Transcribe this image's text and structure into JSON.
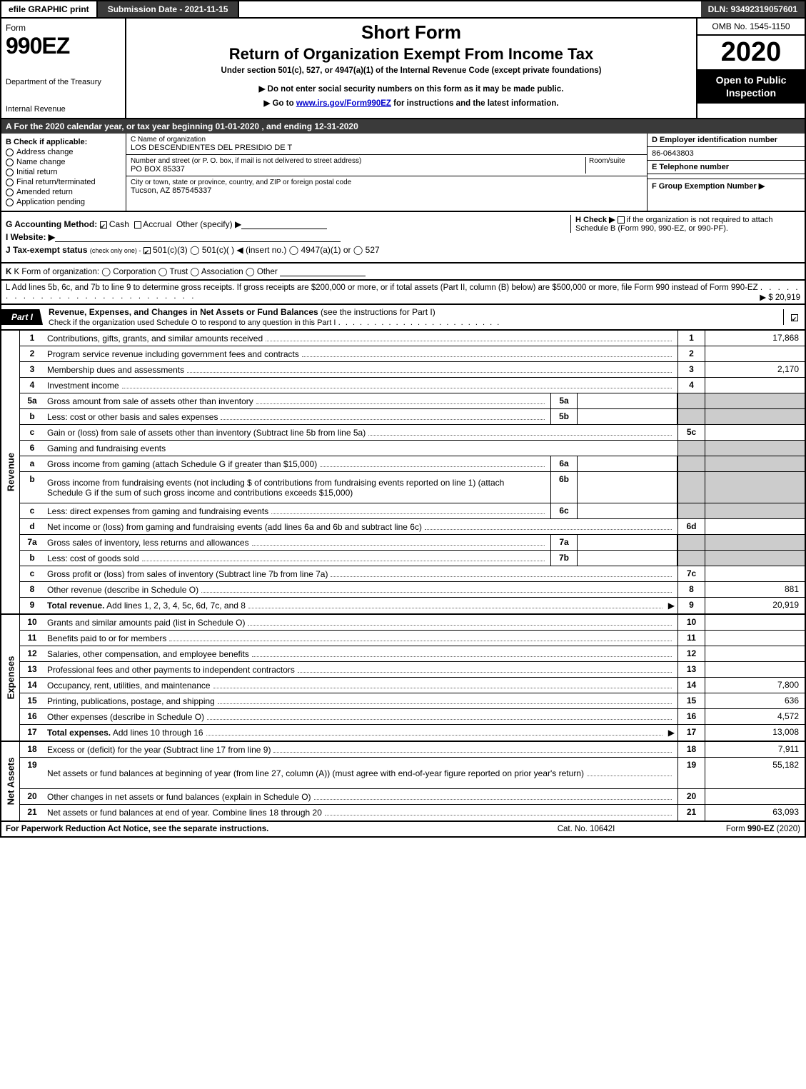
{
  "topbar": {
    "efile": "efile GRAPHIC print",
    "subdate": "Submission Date - 2021-11-15",
    "dln": "DLN: 93492319057601"
  },
  "header": {
    "form_word": "Form",
    "form_num": "990EZ",
    "short_form": "Short Form",
    "return_title": "Return of Organization Exempt From Income Tax",
    "under_section": "Under section 501(c), 527, or 4947(a)(1) of the Internal Revenue Code (except private foundations)",
    "note": "▶ Do not enter social security numbers on this form as it may be made public.",
    "goto_pre": "▶ Go to ",
    "goto_link": "www.irs.gov/Form990EZ",
    "goto_post": " for instructions and the latest information.",
    "dept1": "Department of the Treasury",
    "dept2": "Internal Revenue",
    "omb": "OMB No. 1545-1150",
    "year": "2020",
    "open": "Open to Public Inspection"
  },
  "section_a": "A   For the 2020 calendar year, or tax year beginning 01-01-2020 , and ending 12-31-2020",
  "col_b": {
    "label": "B  Check if applicable:",
    "items": [
      "Address change",
      "Name change",
      "Initial return",
      "Final return/terminated",
      "Amended return",
      "Application pending"
    ]
  },
  "col_c": {
    "name_lbl": "C Name of organization",
    "name_val": "LOS DESCENDIENTES DEL PRESIDIO DE T",
    "street_lbl": "Number and street (or P. O. box, if mail is not delivered to street address)",
    "room_lbl": "Room/suite",
    "street_val": "PO BOX 85337",
    "city_lbl": "City or town, state or province, country, and ZIP or foreign postal code",
    "city_val": "Tucson, AZ  857545337"
  },
  "col_d": {
    "ein_lbl": "D Employer identification number",
    "ein_val": "86-0643803",
    "tel_lbl": "E Telephone number",
    "tel_val": "",
    "grp_lbl": "F Group Exemption Number   ▶",
    "grp_val": ""
  },
  "g_row": {
    "label": "G Accounting Method:",
    "cash": "Cash",
    "accrual": "Accrual",
    "other": "Other (specify) ▶"
  },
  "h_box": {
    "label": "H  Check ▶",
    "text": "if the organization is not required to attach Schedule B (Form 990, 990-EZ, or 990-PF)."
  },
  "i_row": "I Website: ▶",
  "j_row": {
    "label": "J Tax-exempt status",
    "sub": "(check only one) -",
    "opts": "501(c)(3)   ◯ 501(c)(  ) ◀ (insert no.)  ◯ 4947(a)(1) or  ◯ 527"
  },
  "k_row": "K Form of organization:   ◯ Corporation   ◯ Trust   ◯ Association   ◯ Other",
  "l_row": {
    "text": "L Add lines 5b, 6c, and 7b to line 9 to determine gross receipts. If gross receipts are $200,000 or more, or if total assets (Part II, column (B) below) are $500,000 or more, file Form 990 instead of Form 990-EZ",
    "arrow": "▶ $ 20,919"
  },
  "part1": {
    "tag": "Part I",
    "title": "Revenue, Expenses, and Changes in Net Assets or Fund Balances",
    "sub": "(see the instructions for Part I)",
    "checknote": "Check if the organization used Schedule O to respond to any question in this Part I"
  },
  "sections": {
    "revenue": "Revenue",
    "expenses": "Expenses",
    "netassets": "Net Assets"
  },
  "rows": [
    {
      "n": "1",
      "desc": "Contributions, gifts, grants, and similar amounts received",
      "ref": "1",
      "val": "17,868"
    },
    {
      "n": "2",
      "desc": "Program service revenue including government fees and contracts",
      "ref": "2",
      "val": ""
    },
    {
      "n": "3",
      "desc": "Membership dues and assessments",
      "ref": "3",
      "val": "2,170"
    },
    {
      "n": "4",
      "desc": "Investment income",
      "ref": "4",
      "val": ""
    },
    {
      "n": "5a",
      "desc": "Gross amount from sale of assets other than inventory",
      "sub": "5a",
      "refgrey": true
    },
    {
      "n": "b",
      "desc": "Less: cost or other basis and sales expenses",
      "sub": "5b",
      "refgrey": true
    },
    {
      "n": "c",
      "desc": "Gain or (loss) from sale of assets other than inventory (Subtract line 5b from line 5a)",
      "ref": "5c",
      "val": ""
    },
    {
      "n": "6",
      "desc": "Gaming and fundraising events",
      "refgrey": true,
      "noline": true
    },
    {
      "n": "a",
      "desc": "Gross income from gaming (attach Schedule G if greater than $15,000)",
      "sub": "6a",
      "refgrey": true
    },
    {
      "n": "b",
      "desc": "Gross income from fundraising events (not including $                    of contributions from fundraising events reported on line 1) (attach Schedule G if the sum of such gross income and contributions exceeds $15,000)",
      "sub": "6b",
      "refgrey": true,
      "tall": true
    },
    {
      "n": "c",
      "desc": "Less: direct expenses from gaming and fundraising events",
      "sub": "6c",
      "refgrey": true
    },
    {
      "n": "d",
      "desc": "Net income or (loss) from gaming and fundraising events (add lines 6a and 6b and subtract line 6c)",
      "ref": "6d",
      "val": ""
    },
    {
      "n": "7a",
      "desc": "Gross sales of inventory, less returns and allowances",
      "sub": "7a",
      "refgrey": true
    },
    {
      "n": "b",
      "desc": "Less: cost of goods sold",
      "sub": "7b",
      "refgrey": true
    },
    {
      "n": "c",
      "desc": "Gross profit or (loss) from sales of inventory (Subtract line 7b from line 7a)",
      "ref": "7c",
      "val": ""
    },
    {
      "n": "8",
      "desc": "Other revenue (describe in Schedule O)",
      "ref": "8",
      "val": "881"
    },
    {
      "n": "9",
      "desc": "Total revenue. Add lines 1, 2, 3, 4, 5c, 6d, 7c, and 8",
      "ref": "9",
      "val": "20,919",
      "bold": true,
      "arrow": true
    }
  ],
  "rows_exp": [
    {
      "n": "10",
      "desc": "Grants and similar amounts paid (list in Schedule O)",
      "ref": "10",
      "val": ""
    },
    {
      "n": "11",
      "desc": "Benefits paid to or for members",
      "ref": "11",
      "val": ""
    },
    {
      "n": "12",
      "desc": "Salaries, other compensation, and employee benefits",
      "ref": "12",
      "val": ""
    },
    {
      "n": "13",
      "desc": "Professional fees and other payments to independent contractors",
      "ref": "13",
      "val": ""
    },
    {
      "n": "14",
      "desc": "Occupancy, rent, utilities, and maintenance",
      "ref": "14",
      "val": "7,800"
    },
    {
      "n": "15",
      "desc": "Printing, publications, postage, and shipping",
      "ref": "15",
      "val": "636"
    },
    {
      "n": "16",
      "desc": "Other expenses (describe in Schedule O)",
      "ref": "16",
      "val": "4,572"
    },
    {
      "n": "17",
      "desc": "Total expenses. Add lines 10 through 16",
      "ref": "17",
      "val": "13,008",
      "bold": true,
      "arrow": true
    }
  ],
  "rows_na": [
    {
      "n": "18",
      "desc": "Excess or (deficit) for the year (Subtract line 17 from line 9)",
      "ref": "18",
      "val": "7,911"
    },
    {
      "n": "19",
      "desc": "Net assets or fund balances at beginning of year (from line 27, column (A)) (must agree with end-of-year figure reported on prior year's return)",
      "ref": "19",
      "val": "55,182",
      "tall": true
    },
    {
      "n": "20",
      "desc": "Other changes in net assets or fund balances (explain in Schedule O)",
      "ref": "20",
      "val": ""
    },
    {
      "n": "21",
      "desc": "Net assets or fund balances at end of year. Combine lines 18 through 20",
      "ref": "21",
      "val": "63,093"
    }
  ],
  "footer": {
    "left": "For Paperwork Reduction Act Notice, see the separate instructions.",
    "mid": "Cat. No. 10642I",
    "right_pre": "Form ",
    "right_bold": "990-EZ",
    "right_post": " (2020)"
  }
}
